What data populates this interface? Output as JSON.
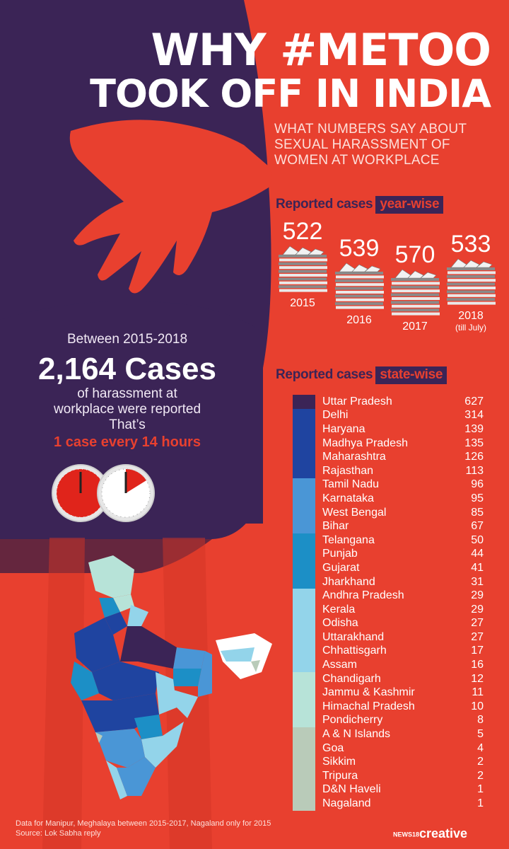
{
  "title": {
    "line1": "WHY #METOO",
    "line2": "TOOK OFF IN INDIA"
  },
  "subtitle": "WHAT NUMBERS SAY ABOUT SEXUAL HARASSMENT OF WOMEN AT WORKPLACE",
  "year_section": {
    "heading": "Reported cases",
    "highlight": "year-wise",
    "years": [
      {
        "value": "522",
        "label": "2015",
        "note": ""
      },
      {
        "value": "539",
        "label": "2016",
        "note": ""
      },
      {
        "value": "570",
        "label": "2017",
        "note": ""
      },
      {
        "value": "533",
        "label": "2018",
        "note": "(till July)"
      }
    ]
  },
  "summary": {
    "between": "Between 2015-2018",
    "total": "2,164 Cases",
    "desc_line1": "of harassment at",
    "desc_line2": "workplace were reported",
    "desc_line3": "That’s",
    "rate": "1 case every 14 hours"
  },
  "state_section": {
    "heading": "Reported cases",
    "highlight": "state-wise",
    "states": [
      {
        "name": "Uttar Pradesh",
        "value": "627",
        "color": "#3b2456"
      },
      {
        "name": "Delhi",
        "value": "314",
        "color": "#1f44a0"
      },
      {
        "name": "Haryana",
        "value": "139",
        "color": "#1f44a0"
      },
      {
        "name": "Madhya Pradesh",
        "value": "135",
        "color": "#1f44a0"
      },
      {
        "name": "Maharashtra",
        "value": "126",
        "color": "#1f44a0"
      },
      {
        "name": "Rajasthan",
        "value": "113",
        "color": "#1f44a0"
      },
      {
        "name": "Tamil Nadu",
        "value": "96",
        "color": "#4a96d6"
      },
      {
        "name": "Karnataka",
        "value": "95",
        "color": "#4a96d6"
      },
      {
        "name": "West Bengal",
        "value": "85",
        "color": "#4a96d6"
      },
      {
        "name": "Bihar",
        "value": "67",
        "color": "#4a96d6"
      },
      {
        "name": "Telangana",
        "value": "50",
        "color": "#1c8fc6"
      },
      {
        "name": "Punjab",
        "value": "44",
        "color": "#1c8fc6"
      },
      {
        "name": "Gujarat",
        "value": "41",
        "color": "#1c8fc6"
      },
      {
        "name": "Jharkhand",
        "value": "31",
        "color": "#1c8fc6"
      },
      {
        "name": "Andhra Pradesh",
        "value": "29",
        "color": "#93d4ea"
      },
      {
        "name": "Kerala",
        "value": "29",
        "color": "#93d4ea"
      },
      {
        "name": "Odisha",
        "value": "27",
        "color": "#93d4ea"
      },
      {
        "name": "Uttarakhand",
        "value": "27",
        "color": "#93d4ea"
      },
      {
        "name": "Chhattisgarh",
        "value": "17",
        "color": "#93d4ea"
      },
      {
        "name": "Assam",
        "value": "16",
        "color": "#93d4ea"
      },
      {
        "name": "Chandigarh",
        "value": "12",
        "color": "#b7e3d8"
      },
      {
        "name": "Jammu & Kashmir",
        "value": "11",
        "color": "#b7e3d8"
      },
      {
        "name": "Himachal Pradesh",
        "value": "10",
        "color": "#b7e3d8"
      },
      {
        "name": "Pondicherry",
        "value": "8",
        "color": "#b7e3d8"
      },
      {
        "name": "A & N Islands",
        "value": "5",
        "color": "#b9cbb9"
      },
      {
        "name": "Goa",
        "value": "4",
        "color": "#b9cbb9"
      },
      {
        "name": "Sikkim",
        "value": "2",
        "color": "#b9cbb9"
      },
      {
        "name": "Tripura",
        "value": "2",
        "color": "#b9cbb9"
      },
      {
        "name": "D&N Haveli",
        "value": "1",
        "color": "#b9cbb9"
      },
      {
        "name": "Nagaland",
        "value": "1",
        "color": "#b9cbb9"
      }
    ]
  },
  "footnote": {
    "line1": "Data for Manipur, Meghalaya between 2015-2017, Nagaland only for 2015",
    "line2": "Source: Lok Sabha reply"
  },
  "brand": {
    "prefix": "NEWS18",
    "name": "creative"
  },
  "colors": {
    "background": "#e8402f",
    "figure": "#3b2456",
    "hand": "#e8402f",
    "clock_red": "#e0241b"
  }
}
